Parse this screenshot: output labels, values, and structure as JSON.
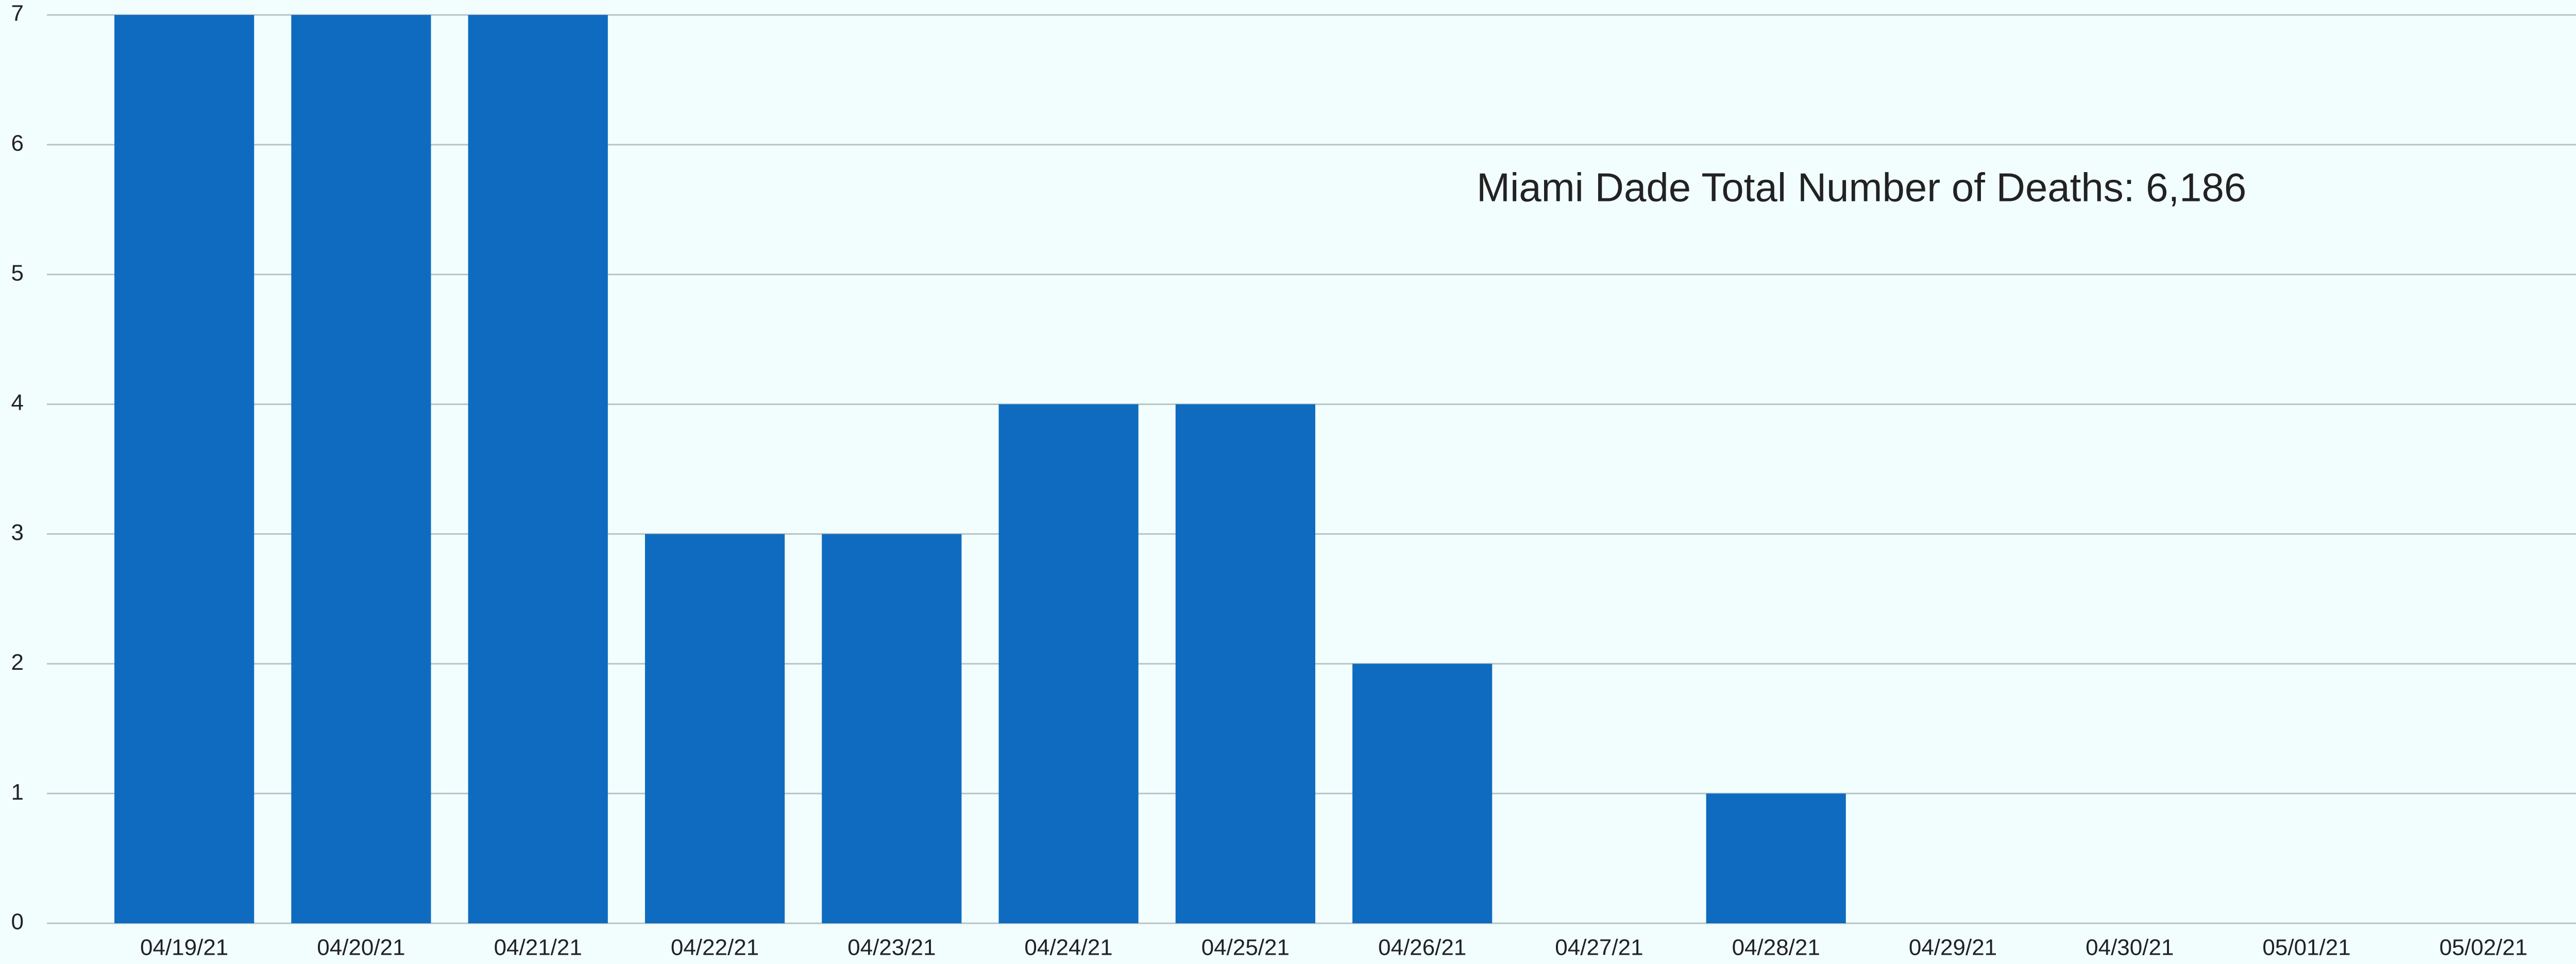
{
  "chart_data": {
    "type": "bar",
    "annotation": "Miami Dade Total Number of Deaths: 6,186",
    "categories": [
      "04/19/21",
      "04/20/21",
      "04/21/21",
      "04/22/21",
      "04/23/21",
      "04/24/21",
      "04/25/21",
      "04/26/21",
      "04/27/21",
      "04/28/21",
      "04/29/21",
      "04/30/21",
      "05/01/21",
      "05/02/21"
    ],
    "values": [
      7,
      7,
      7,
      3,
      3,
      4,
      4,
      2,
      0,
      1,
      0,
      0,
      0,
      0
    ],
    "color": "#0f6bbf",
    "ylim": [
      0,
      7
    ],
    "yticks": [
      0,
      1,
      2,
      3,
      4,
      5,
      6,
      7
    ],
    "grid": true
  }
}
